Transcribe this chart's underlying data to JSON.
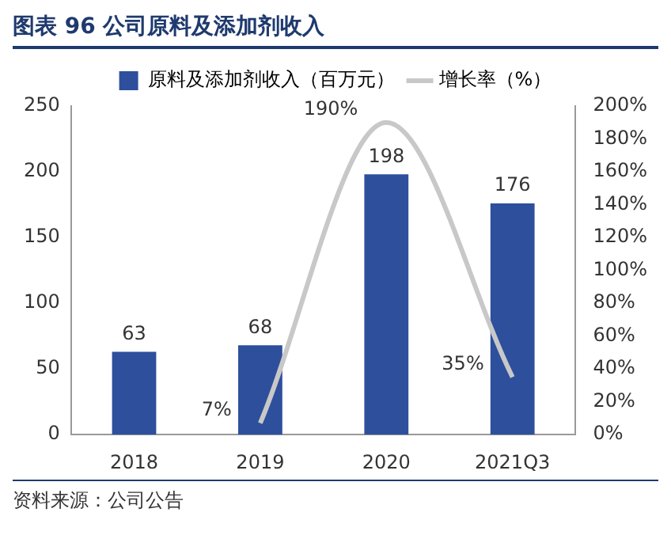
{
  "chart_data": {
    "type": "bar",
    "title": "图表 96  公司原料及添加剂收入",
    "categories": [
      "2018",
      "2019",
      "2020",
      "2021Q3"
    ],
    "series": [
      {
        "name": "原料及添加剂收入（百万元）",
        "color": "#2e4f9c",
        "values": [
          63,
          68,
          198,
          176
        ],
        "value_labels": [
          "63",
          "68",
          "198",
          "176"
        ]
      },
      {
        "name": "增长率（%）",
        "type": "line",
        "axis": "y2",
        "color": "#c8c8c8",
        "values": [
          null,
          7,
          190,
          35
        ],
        "value_labels": [
          null,
          "7%",
          "190%",
          "35%"
        ]
      }
    ],
    "ylim": [
      0,
      250
    ],
    "yticks": [
      0,
      50,
      100,
      150,
      200,
      250
    ],
    "y2lim": [
      0,
      200
    ],
    "y2ticks": [
      {
        "value": 0,
        "label": "0%"
      },
      {
        "value": 20,
        "label": "20%"
      },
      {
        "value": 40,
        "label": "40%"
      },
      {
        "value": 60,
        "label": "60%"
      },
      {
        "value": 80,
        "label": "80%"
      },
      {
        "value": 100,
        "label": "100%"
      },
      {
        "value": 120,
        "label": "120%"
      },
      {
        "value": 140,
        "label": "140%"
      },
      {
        "value": 160,
        "label": "160%"
      },
      {
        "value": 180,
        "label": "180%"
      },
      {
        "value": 200,
        "label": "200%"
      }
    ],
    "legend": "top",
    "grid": false,
    "marker": "none",
    "annotations": [
      "资料来源：公司公告"
    ]
  }
}
